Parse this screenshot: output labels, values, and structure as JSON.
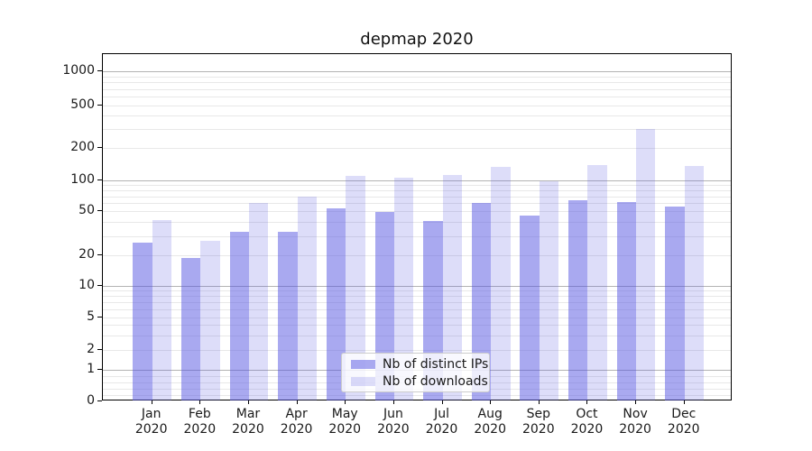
{
  "title": "depmap 2020",
  "chart_data": {
    "type": "bar",
    "title": "depmap 2020",
    "categories": [
      "Jan 2020",
      "Feb 2020",
      "Mar 2020",
      "Apr 2020",
      "May 2020",
      "Jun 2020",
      "Jul 2020",
      "Aug 2020",
      "Sep 2020",
      "Oct 2020",
      "Nov 2020",
      "Dec 2020"
    ],
    "x_tick_line1": [
      "Jan",
      "Feb",
      "Mar",
      "Apr",
      "May",
      "Jun",
      "Jul",
      "Aug",
      "Sep",
      "Oct",
      "Nov",
      "Dec"
    ],
    "x_tick_line2": [
      "2020",
      "2020",
      "2020",
      "2020",
      "2020",
      "2020",
      "2020",
      "2020",
      "2020",
      "2020",
      "2020",
      "2020"
    ],
    "series": [
      {
        "name": "Nb of distinct IPs",
        "values": [
          26,
          19,
          33,
          33,
          53,
          49,
          41,
          60,
          46,
          64,
          62,
          56
        ]
      },
      {
        "name": "Nb of downloads",
        "values": [
          42,
          27,
          60,
          70,
          110,
          105,
          112,
          135,
          98,
          140,
          300,
          136
        ]
      }
    ],
    "xlabel": "",
    "ylabel": "",
    "yscale": "symlog",
    "yticks": [
      0,
      1,
      2,
      5,
      10,
      20,
      50,
      100,
      200,
      500,
      1000
    ],
    "major_grid_values": [
      1,
      10,
      100,
      1000
    ],
    "minor_grid_values": [
      0.2,
      0.4,
      0.6,
      0.8,
      2,
      3,
      4,
      5,
      6,
      7,
      8,
      9,
      20,
      30,
      40,
      50,
      60,
      70,
      80,
      90,
      200,
      300,
      400,
      500,
      600,
      700,
      800,
      900
    ],
    "grid": "horizontal",
    "legend_position": "lower center"
  },
  "legend": {
    "items": [
      "Nb of distinct IPs",
      "Nb of downloads"
    ]
  },
  "colors": {
    "bar_dark": "rgba(83,83,225,0.5)",
    "bar_light": "rgba(83,83,225,0.2)",
    "major_grid": "#b3b3b3",
    "minor_grid": "#e8e8e8",
    "spine": "#000000",
    "text": "#1a1a1a",
    "background": "#ffffff"
  }
}
